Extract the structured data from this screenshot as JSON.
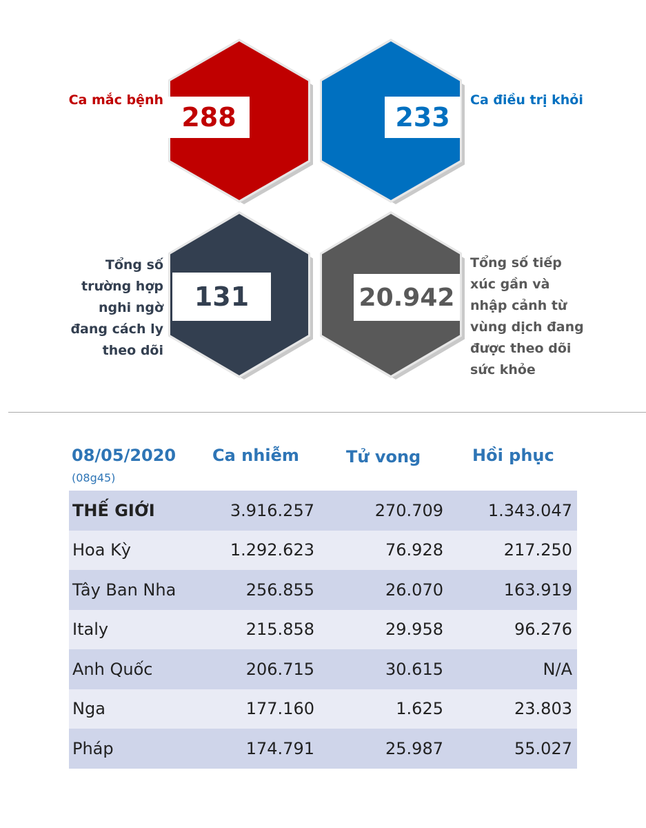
{
  "stats": {
    "infected": {
      "label": "Ca mắc bệnh",
      "value": "288",
      "color": "#c00000"
    },
    "recovered": {
      "label": "Ca điều trị khỏi",
      "value": "233",
      "color": "#0070c0"
    },
    "suspected": {
      "label_lines": [
        "Tổng số",
        "trường hợp",
        "nghi ngờ",
        "đang cách ly",
        "theo dõi"
      ],
      "value": "131",
      "color": "#333f50"
    },
    "monitored": {
      "label_lines": [
        "Tổng số tiếp",
        "xúc gần và",
        "nhập cảnh từ",
        "vùng dịch đang",
        "được theo dõi",
        "sức khỏe"
      ],
      "value": "20.942",
      "color": "#595959"
    }
  },
  "table": {
    "date": "08/05/2020",
    "time": "(08g45)",
    "headers": [
      "Ca nhiễm",
      "Tử vong",
      "Hồi phục"
    ],
    "rows": [
      {
        "name": "THẾ GIỚI",
        "cases": "3.916.257",
        "deaths": "270.709",
        "recovered": "1.343.047"
      },
      {
        "name": "Hoa Kỳ",
        "cases": "1.292.623",
        "deaths": "76.928",
        "recovered": "217.250"
      },
      {
        "name": "Tây Ban Nha",
        "cases": "256.855",
        "deaths": "26.070",
        "recovered": "163.919"
      },
      {
        "name": "Italy",
        "cases": "215.858",
        "deaths": "29.958",
        "recovered": "96.276"
      },
      {
        "name": "Anh Quốc",
        "cases": "206.715",
        "deaths": "30.615",
        "recovered": "N/A"
      },
      {
        "name": "Nga",
        "cases": "177.160",
        "deaths": "1.625",
        "recovered": "23.803"
      },
      {
        "name": "Pháp",
        "cases": "174.791",
        "deaths": "25.987",
        "recovered": "55.027"
      }
    ]
  }
}
